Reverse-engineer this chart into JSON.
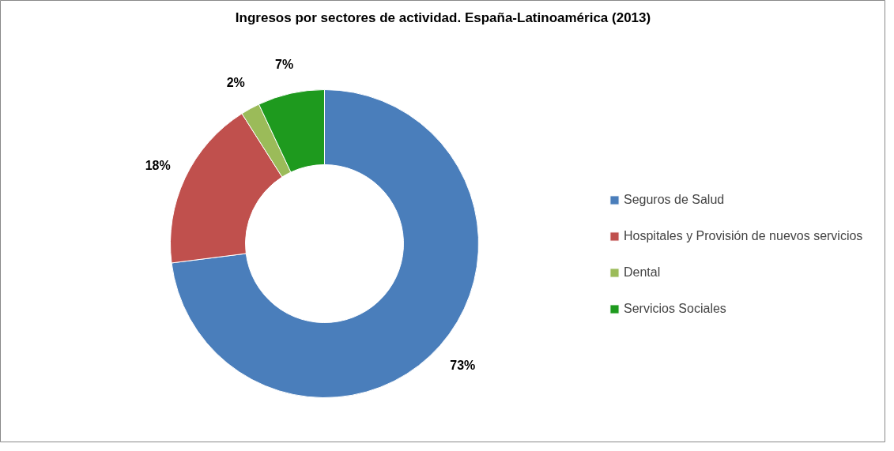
{
  "chart_data": {
    "type": "donut",
    "title": "Ingresos por sectores de actividad. España-Latinoamérica (2013)",
    "categories": [
      "Seguros de Salud",
      "Hospitales y Provisión de nuevos servicios",
      "Dental",
      "Servicios Sociales"
    ],
    "values": [
      73,
      18,
      2,
      7
    ],
    "colors": [
      "#4a7ebb",
      "#c0504d",
      "#9bbb59",
      "#1e9a1e"
    ],
    "value_labels": [
      "73%",
      "18%",
      "2%",
      "7%"
    ],
    "legend": "right"
  }
}
